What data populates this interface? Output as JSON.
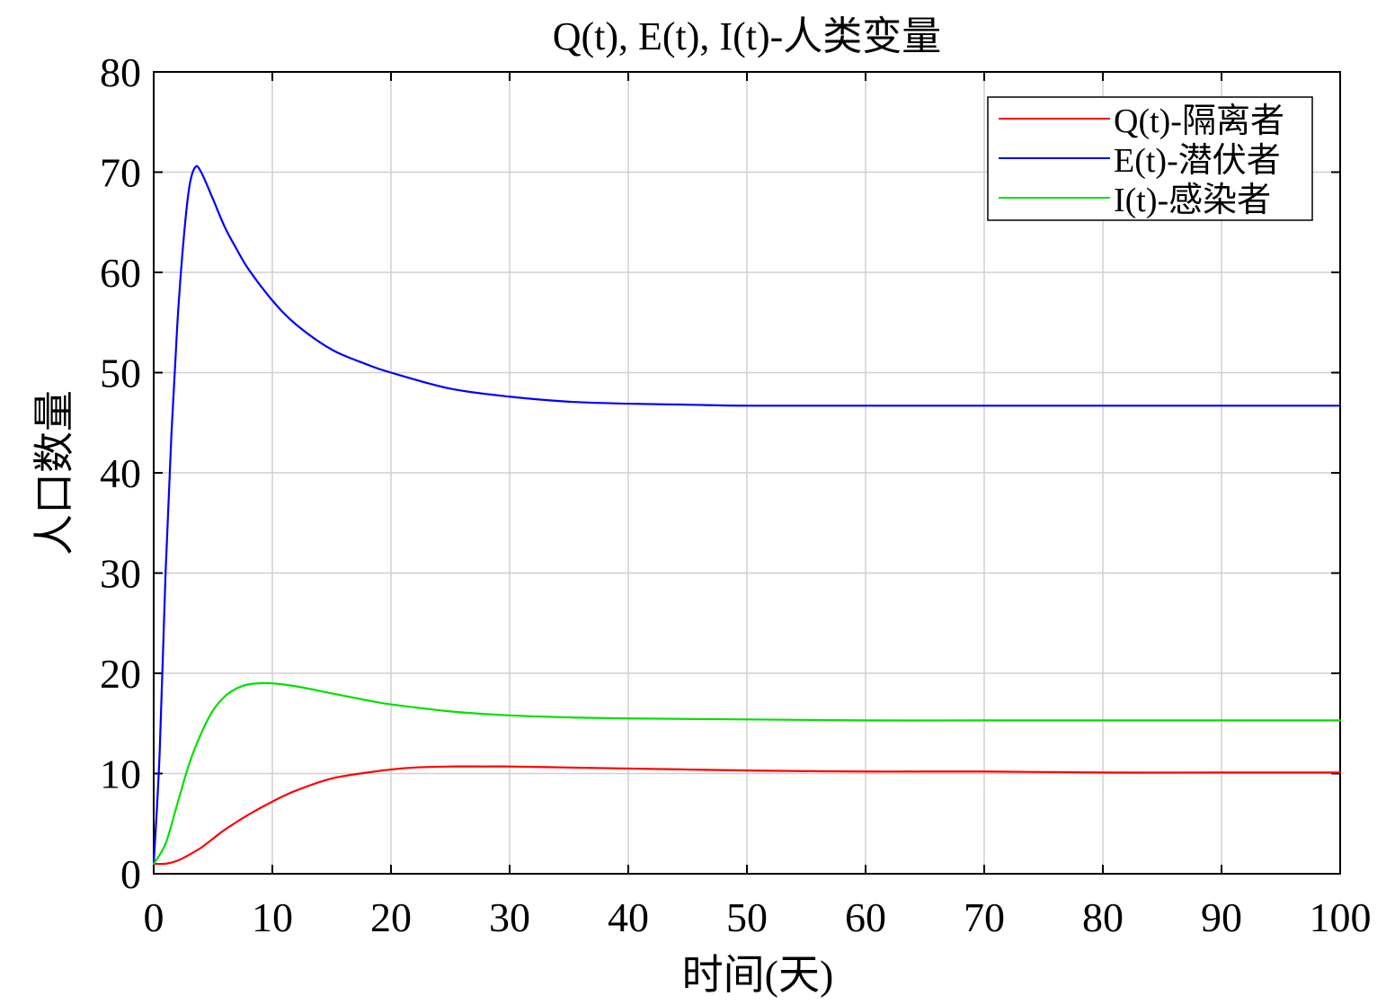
{
  "chart_data": {
    "type": "line",
    "title": "Q(t), E(t), I(t)-人类变量",
    "xlabel": "时间(天)",
    "ylabel": "人口数量",
    "xlim": [
      0,
      100
    ],
    "ylim": [
      0,
      80
    ],
    "xticks": [
      0,
      10,
      20,
      30,
      40,
      50,
      60,
      70,
      80,
      90,
      100
    ],
    "yticks": [
      0,
      10,
      20,
      30,
      40,
      50,
      60,
      70,
      80
    ],
    "grid": true,
    "legend_position": "top-right",
    "series": [
      {
        "name": "Q(t)-隔离者",
        "color": "#ff0000",
        "x": [
          0,
          1,
          2,
          3,
          4,
          5,
          6,
          8,
          10,
          12,
          15,
          18,
          20,
          22,
          25,
          28,
          30,
          35,
          40,
          45,
          50,
          60,
          70,
          80,
          90,
          100
        ],
        "y": [
          1.0,
          1.0,
          1.3,
          1.9,
          2.6,
          3.5,
          4.4,
          5.9,
          7.2,
          8.3,
          9.5,
          10.1,
          10.4,
          10.6,
          10.7,
          10.7,
          10.7,
          10.6,
          10.5,
          10.4,
          10.3,
          10.2,
          10.2,
          10.1,
          10.1,
          10.1
        ]
      },
      {
        "name": "E(t)-潜伏者",
        "color": "#0000ff",
        "x": [
          0,
          0.5,
          1,
          1.5,
          2,
          2.5,
          3,
          3.5,
          4,
          5,
          6,
          7,
          8,
          10,
          12,
          15,
          18,
          20,
          25,
          30,
          35,
          40,
          45,
          50,
          60,
          70,
          80,
          90,
          100
        ],
        "y": [
          1.0,
          12,
          30,
          44,
          55,
          63,
          68.5,
          70.5,
          70.0,
          67.3,
          64.5,
          62.3,
          60.3,
          57.2,
          54.8,
          52.3,
          50.8,
          50.0,
          48.4,
          47.6,
          47.1,
          46.9,
          46.8,
          46.7,
          46.7,
          46.7,
          46.7,
          46.7,
          46.7
        ]
      },
      {
        "name": "I(t)-感染者",
        "color": "#00e000",
        "x": [
          0,
          1,
          2,
          3,
          4,
          5,
          6,
          7,
          8,
          9,
          10,
          12,
          15,
          18,
          20,
          25,
          30,
          35,
          40,
          50,
          60,
          70,
          80,
          90,
          100
        ],
        "y": [
          1.0,
          3.0,
          7.0,
          11.0,
          14.0,
          16.3,
          17.7,
          18.5,
          18.9,
          19.0,
          19.0,
          18.7,
          18.0,
          17.3,
          16.9,
          16.2,
          15.8,
          15.6,
          15.5,
          15.4,
          15.3,
          15.3,
          15.3,
          15.3,
          15.3
        ]
      }
    ]
  }
}
